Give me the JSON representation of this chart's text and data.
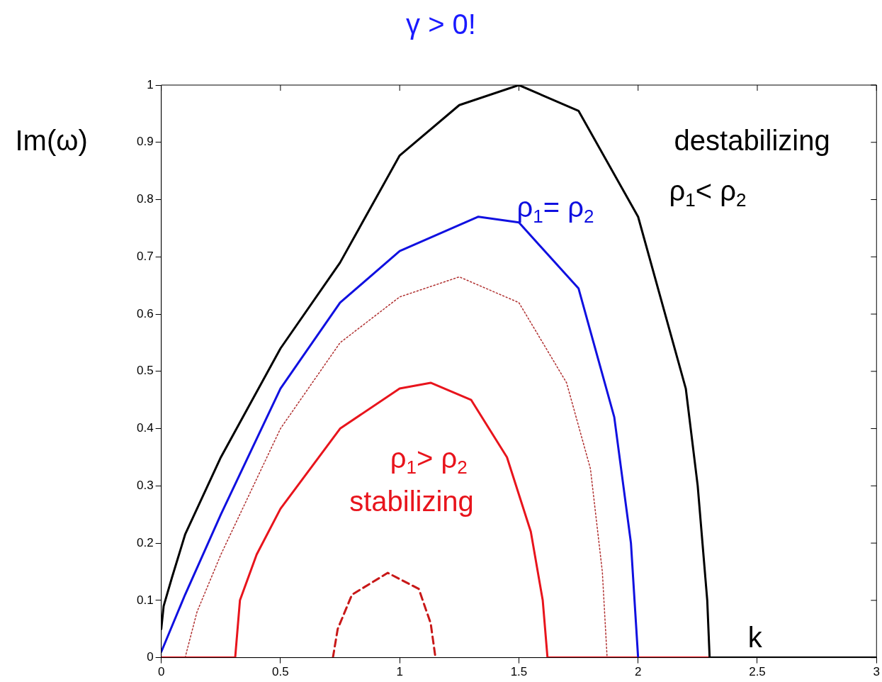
{
  "chart_data": {
    "type": "line",
    "title": "γ > 0!",
    "xlabel": "k",
    "ylabel": "Im(ω)",
    "xlim": [
      0,
      3
    ],
    "ylim": [
      0,
      1
    ],
    "xticks": [
      0,
      0.5,
      1,
      1.5,
      2,
      2.5,
      3
    ],
    "yticks": [
      0,
      0.1,
      0.2,
      0.3,
      0.4,
      0.5,
      0.6,
      0.7,
      0.8,
      0.9,
      1
    ],
    "grid": false,
    "legend": false,
    "marker": "none",
    "series": [
      {
        "type": "line",
        "name": "ρ$_{1}$< ρ$_{2}$",
        "color": "#000000",
        "line_style": "solid",
        "x": [
          0,
          0.01,
          0.045,
          0.1,
          0.25,
          0.5,
          0.75,
          1.0,
          1.25,
          1.5,
          1.75,
          2.0,
          2.2,
          2.25,
          2.29,
          2.3,
          3
        ],
        "values": [
          0.05,
          0.09,
          0.14,
          0.215,
          0.35,
          0.54,
          0.69,
          0.877,
          0.965,
          1.0,
          0.955,
          0.77,
          0.47,
          0.3,
          0.1,
          0,
          0
        ]
      },
      {
        "type": "line",
        "name": "ρ$_{1}$= ρ$_{2}$",
        "color": "#1010e0",
        "line_style": "solid",
        "x": [
          0,
          0.1,
          0.25,
          0.5,
          0.75,
          1.0,
          1.33,
          1.5,
          1.75,
          1.9,
          1.97,
          2.0
        ],
        "values": [
          0.01,
          0.11,
          0.25,
          0.47,
          0.62,
          0.71,
          0.77,
          0.76,
          0.645,
          0.42,
          0.2,
          0
        ]
      },
      {
        "type": "line",
        "color": "#b03030",
        "line_style": "dotted",
        "x": [
          0.1,
          0.15,
          0.25,
          0.5,
          0.75,
          1.0,
          1.25,
          1.5,
          1.7,
          1.8,
          1.85,
          1.87
        ],
        "values": [
          0,
          0.08,
          0.18,
          0.4,
          0.55,
          0.63,
          0.665,
          0.62,
          0.48,
          0.33,
          0.15,
          0
        ]
      },
      {
        "type": "line",
        "name": "ρ$_{1}$> ρ$_{2}$",
        "color": "#e8141c",
        "line_style": "solid",
        "x": [
          0,
          0.31,
          0.33,
          0.4,
          0.5,
          0.75,
          1.0,
          1.13,
          1.3,
          1.45,
          1.55,
          1.6,
          1.62,
          2.3
        ],
        "values": [
          0,
          0,
          0.1,
          0.18,
          0.26,
          0.4,
          0.47,
          0.48,
          0.45,
          0.35,
          0.22,
          0.1,
          0,
          0
        ]
      },
      {
        "type": "line",
        "color": "#c81818",
        "line_style": "dashed",
        "x": [
          0.72,
          0.74,
          0.8,
          0.95,
          1.08,
          1.13,
          1.15
        ],
        "values": [
          0,
          0.05,
          0.11,
          0.148,
          0.12,
          0.06,
          0
        ]
      }
    ],
    "annotations": [
      "destabilizing",
      "stabilizing"
    ]
  }
}
